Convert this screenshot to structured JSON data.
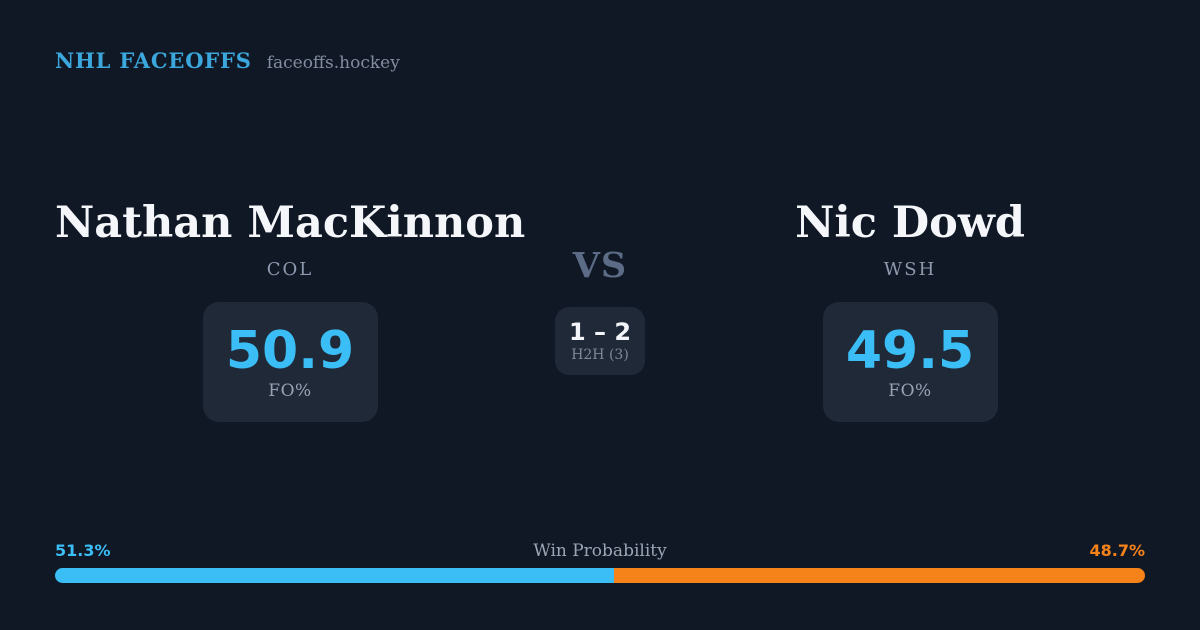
{
  "header": {
    "brand": "NHL FACEOFFS",
    "site": "faceoffs.hockey"
  },
  "matchup": {
    "vs_label": "VS",
    "h2h": {
      "score": "1 – 2",
      "label": "H2H (3)"
    },
    "left": {
      "name": "Nathan MacKinnon",
      "team": "COL",
      "stat_value": "50.9",
      "stat_label": "FO%"
    },
    "right": {
      "name": "Nic Dowd",
      "team": "WSH",
      "stat_value": "49.5",
      "stat_label": "FO%"
    }
  },
  "win_probability": {
    "title": "Win Probability",
    "left_label": "51.3%",
    "right_label": "48.7%",
    "left_pct": 51.3,
    "right_pct": 48.7
  },
  "colors": {
    "background": "#101826",
    "card": "#1f2938",
    "accent_blue": "#3bbdf5",
    "brand_blue": "#3ba7dc",
    "accent_orange": "#f6821a"
  }
}
